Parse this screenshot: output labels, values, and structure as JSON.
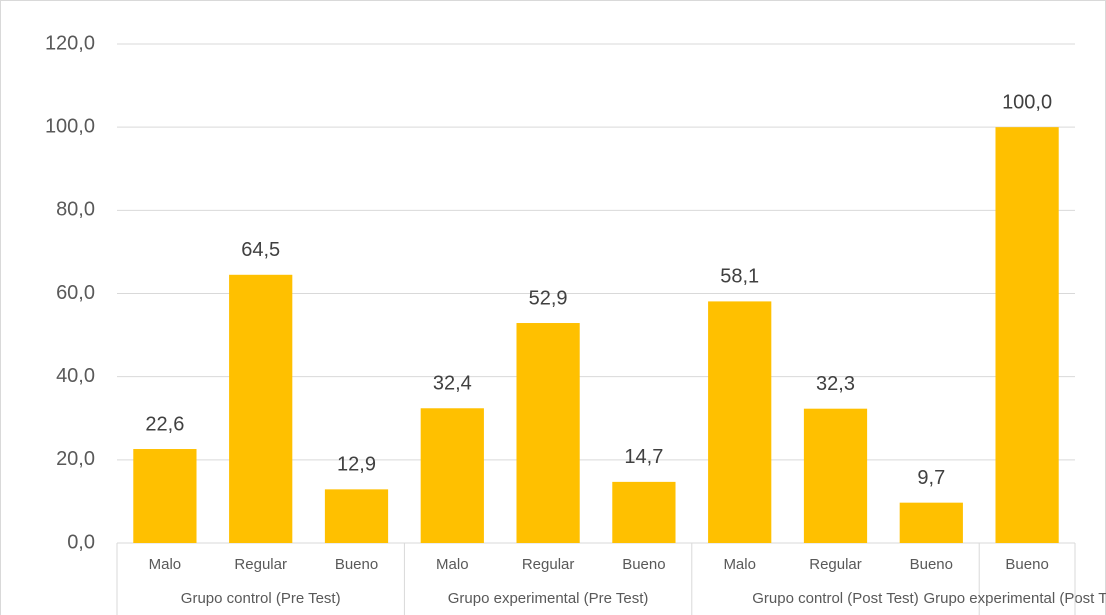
{
  "chart_data": {
    "type": "bar",
    "color": "#ffc000",
    "grid": true,
    "ylim": [
      0,
      120
    ],
    "yticks": [
      {
        "value": 0,
        "label": "0,0"
      },
      {
        "value": 20,
        "label": "20,0"
      },
      {
        "value": 40,
        "label": "40,0"
      },
      {
        "value": 60,
        "label": "60,0"
      },
      {
        "value": 80,
        "label": "80,0"
      },
      {
        "value": 100,
        "label": "100,0"
      },
      {
        "value": 120,
        "label": "120,0"
      }
    ],
    "groups": [
      {
        "name": "Grupo control (Pre Test)",
        "categories": [
          "Malo",
          "Regular",
          "Bueno"
        ],
        "values": [
          22.6,
          64.5,
          12.9
        ],
        "value_labels": [
          "22,6",
          "64,5",
          "12,9"
        ]
      },
      {
        "name": "Grupo experimental (Pre Test)",
        "categories": [
          "Malo",
          "Regular",
          "Bueno"
        ],
        "values": [
          32.4,
          52.9,
          14.7
        ],
        "value_labels": [
          "32,4",
          "52,9",
          "14,7"
        ]
      },
      {
        "name": "Grupo control (Post Test)",
        "categories": [
          "Malo",
          "Regular",
          "Bueno"
        ],
        "values": [
          58.1,
          32.3,
          9.7
        ],
        "value_labels": [
          "58,1",
          "32,3",
          "9,7"
        ]
      },
      {
        "name": "Grupo experimental (Post Test)",
        "categories": [
          "Bueno"
        ],
        "values": [
          100.0
        ],
        "value_labels": [
          "100,0"
        ]
      }
    ]
  }
}
